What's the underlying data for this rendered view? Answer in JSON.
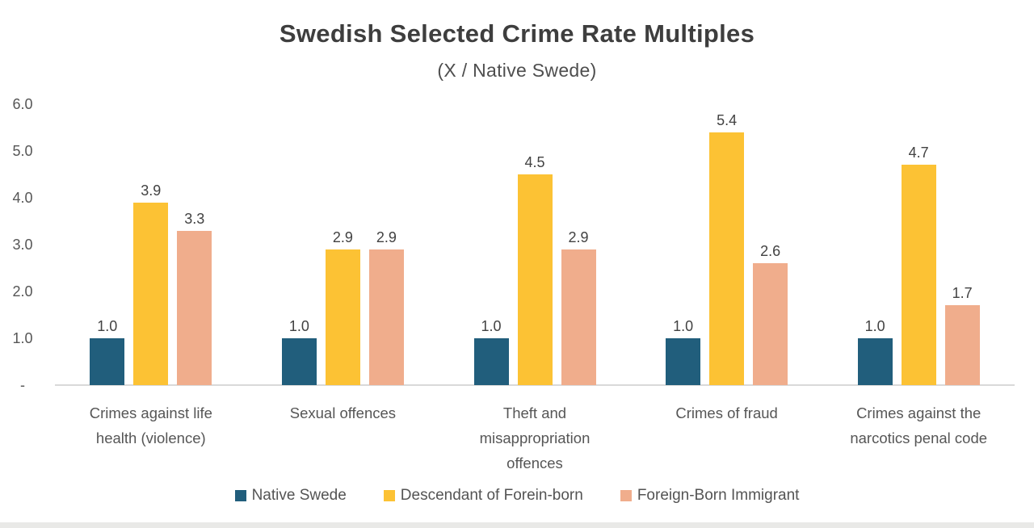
{
  "chart_data": {
    "type": "bar",
    "title": "Swedish Selected Crime Rate Multiples",
    "subtitle": "(X / Native Swede)",
    "categories": [
      "Crimes against life health (violence)",
      "Sexual offences",
      "Theft and misappropriation offences",
      "Crimes of fraud",
      "Crimes against the narcotics penal code"
    ],
    "category_label_lines": [
      [
        "Crimes against life",
        "health (violence)"
      ],
      [
        "Sexual offences"
      ],
      [
        "Theft and",
        "misappropriation",
        "offences"
      ],
      [
        "Crimes of fraud"
      ],
      [
        "Crimes against the",
        "narcotics penal code"
      ]
    ],
    "series": [
      {
        "name": "Native Swede",
        "color": "#215E7C",
        "values": [
          1.0,
          1.0,
          1.0,
          1.0,
          1.0
        ]
      },
      {
        "name": "Descendant of Forein-born",
        "color": "#FCC234",
        "values": [
          3.9,
          2.9,
          4.5,
          5.4,
          4.7
        ]
      },
      {
        "name": "Foreign-Born Immigrant",
        "color": "#F0AD8C",
        "values": [
          3.3,
          2.9,
          2.9,
          2.6,
          1.7
        ]
      }
    ],
    "y_axis": {
      "min": 0,
      "max": 6,
      "tick_step": 1,
      "tick_labels": [
        "-",
        "1.0",
        "2.0",
        "3.0",
        "4.0",
        "5.0",
        "6.0"
      ]
    },
    "grid": false,
    "legend_position": "bottom",
    "colors": {
      "background": "#FFFFFF",
      "title_text": "#3E3E3E",
      "axis_text": "#565656",
      "axis_line": "#D9D9D9",
      "bottom_strip": "#E9E9E7"
    }
  }
}
